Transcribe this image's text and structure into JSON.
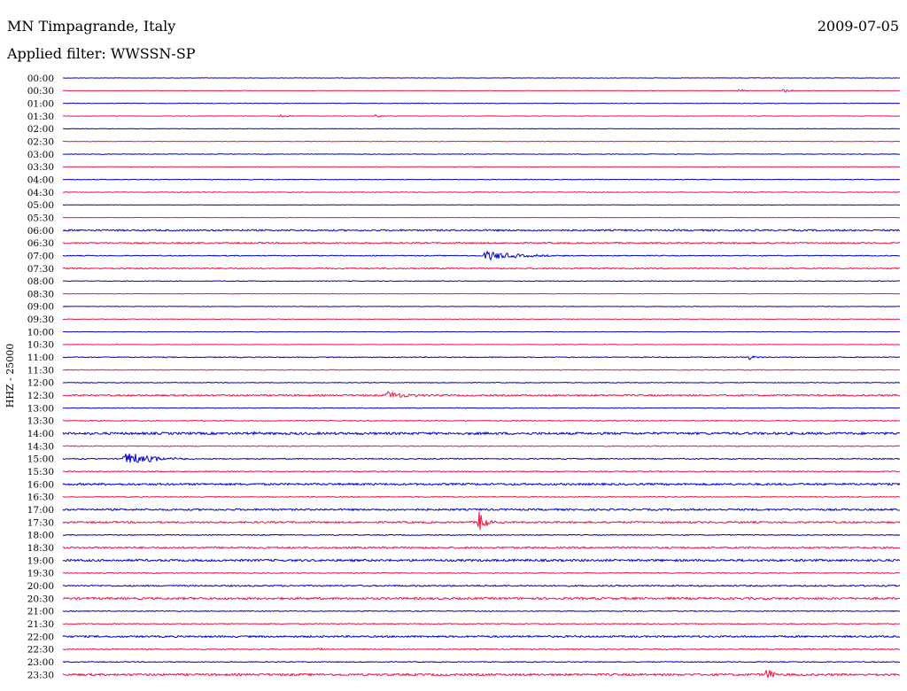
{
  "header": {
    "station": "MN Timpagrande, Italy",
    "date": "2009-07-05",
    "filter": "Applied filter: WWSSN-SP"
  },
  "chart_data": {
    "type": "helicorder",
    "ylabel": "HHZ - 25000",
    "row_times": [
      "00:00",
      "00:30",
      "01:00",
      "01:30",
      "02:00",
      "02:30",
      "03:00",
      "03:30",
      "04:00",
      "04:30",
      "05:00",
      "05:30",
      "06:00",
      "06:30",
      "07:00",
      "07:30",
      "08:00",
      "08:30",
      "09:00",
      "09:30",
      "10:00",
      "10:30",
      "11:00",
      "11:30",
      "12:00",
      "12:30",
      "13:00",
      "13:30",
      "14:00",
      "14:30",
      "15:00",
      "15:30",
      "16:00",
      "16:30",
      "17:00",
      "17:30",
      "18:00",
      "18:30",
      "19:00",
      "19:30",
      "20:00",
      "20:30",
      "21:00",
      "21:30",
      "22:00",
      "22:30",
      "23:00",
      "23:30"
    ],
    "row_minutes": 30,
    "colors": [
      "#0000cc",
      "#ee1144"
    ],
    "noise": [
      0.25,
      0.2,
      0.3,
      0.3,
      0.25,
      0.25,
      0.35,
      0.25,
      0.35,
      0.4,
      0.2,
      0.2,
      0.9,
      0.8,
      0.5,
      0.7,
      0.4,
      0.25,
      0.3,
      0.3,
      0.25,
      0.3,
      0.5,
      0.4,
      0.4,
      0.9,
      0.4,
      0.5,
      1.3,
      0.5,
      0.6,
      0.6,
      1.1,
      0.5,
      1.0,
      1.0,
      0.5,
      1.0,
      1.2,
      0.5,
      0.8,
      1.2,
      0.5,
      0.5,
      1.0,
      0.6,
      0.5,
      1.2
    ],
    "events": [
      {
        "row": 1,
        "minute": 24.2,
        "amplitude": 3,
        "duration": 0.6
      },
      {
        "row": 1,
        "minute": 25.8,
        "amplitude": 3,
        "duration": 0.6
      },
      {
        "row": 3,
        "minute": 7.8,
        "amplitude": 1.5,
        "duration": 1.5
      },
      {
        "row": 3,
        "minute": 11.2,
        "amplitude": 1.5,
        "duration": 0.8
      },
      {
        "row": 14,
        "minute": 15.1,
        "amplitude": 6,
        "duration": 3
      },
      {
        "row": 22,
        "minute": 24.6,
        "amplitude": 3,
        "duration": 0.6
      },
      {
        "row": 25,
        "minute": 11.6,
        "amplitude": 5,
        "duration": 2
      },
      {
        "row": 28,
        "minute": 6.7,
        "amplitude": 3,
        "duration": 0.6
      },
      {
        "row": 30,
        "minute": 2.2,
        "amplitude": 9,
        "duration": 2.5
      },
      {
        "row": 35,
        "minute": 14.9,
        "amplitude": 17,
        "duration": 0.6
      },
      {
        "row": 45,
        "minute": 9.0,
        "amplitude": 2,
        "duration": 0.8
      },
      {
        "row": 47,
        "minute": 25.2,
        "amplitude": 8,
        "duration": 0.8
      }
    ]
  }
}
